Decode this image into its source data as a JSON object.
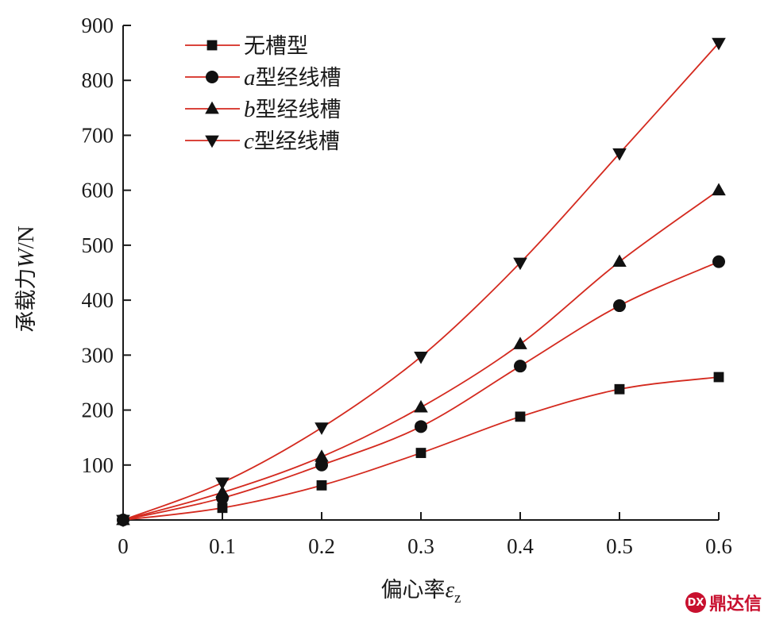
{
  "chart_data": {
    "type": "line",
    "x": [
      0,
      0.1,
      0.2,
      0.3,
      0.4,
      0.5,
      0.6
    ],
    "x_tick_labels": [
      "0",
      "0.1",
      "0.2",
      "0.3",
      "0.4",
      "0.5",
      "0.6"
    ],
    "y_ticks": [
      100,
      200,
      300,
      400,
      500,
      600,
      700,
      800,
      900
    ],
    "y_tick_labels": [
      "100",
      "200",
      "300",
      "400",
      "500",
      "600",
      "700",
      "800",
      "900"
    ],
    "xlim": [
      0,
      0.6
    ],
    "ylim": [
      0,
      900
    ],
    "xlabel": {
      "text": "偏心率",
      "var": "ε",
      "sub": "z"
    },
    "ylabel": {
      "text": "承载力",
      "var": "W",
      "unit": "/N"
    },
    "grid": false,
    "legend_position": "top-left",
    "line_color": "#d42a1f",
    "marker_color": "#111111",
    "series": [
      {
        "name": "无槽型",
        "name_prefix": "",
        "name_suffix": "无槽型",
        "marker": "square",
        "values": [
          0,
          22,
          63,
          122,
          188,
          238,
          260
        ]
      },
      {
        "name": "a型经线槽",
        "name_prefix": "a",
        "name_suffix": "型经线槽",
        "marker": "circle",
        "values": [
          0,
          40,
          100,
          170,
          280,
          390,
          470
        ]
      },
      {
        "name": "b型经线槽",
        "name_prefix": "b",
        "name_suffix": "型经线槽",
        "marker": "triangle-up",
        "values": [
          0,
          50,
          115,
          205,
          320,
          470,
          600
        ]
      },
      {
        "name": "c型经线槽",
        "name_prefix": "c",
        "name_suffix": "型经线槽",
        "marker": "triangle-down",
        "values": [
          0,
          68,
          168,
          297,
          468,
          667,
          868
        ]
      }
    ]
  },
  "watermark": {
    "text": "鼎达信",
    "logo_icon": "ddx-logo-icon",
    "logo_glyph": "DX"
  }
}
